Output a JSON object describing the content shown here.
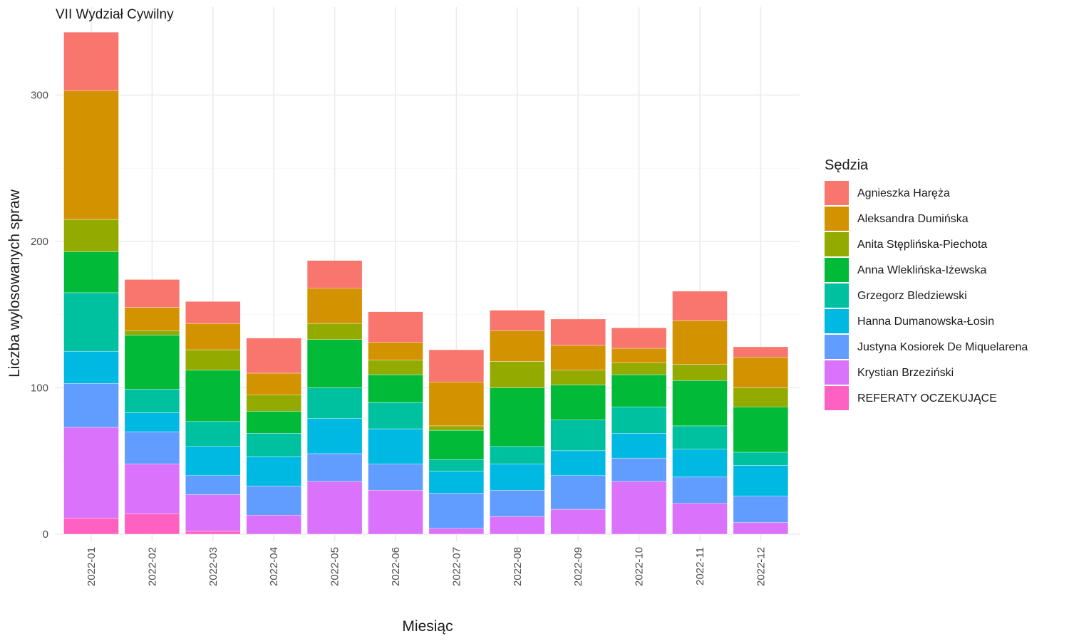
{
  "chart_data": {
    "type": "bar",
    "stacked": true,
    "title": "VII Wydział Cywilny",
    "xlabel": "Miesiąc",
    "ylabel": "Liczba wylosowanych spraw",
    "ylim": [
      -12,
      348
    ],
    "yticks": [
      0,
      100,
      200,
      300
    ],
    "grid": true,
    "legend_title": "Sędzia",
    "legend_position": "right",
    "categories": [
      "2022-01",
      "2022-02",
      "2022-03",
      "2022-04",
      "2022-05",
      "2022-06",
      "2022-07",
      "2022-08",
      "2022-09",
      "2022-10",
      "2022-11",
      "2022-12"
    ],
    "series": [
      {
        "name": "Agnieszka Haręża",
        "color": "#F8766D",
        "values": [
          40,
          19,
          15,
          24,
          19,
          21,
          22,
          14,
          18,
          14,
          20,
          7
        ]
      },
      {
        "name": "Aleksandra Dumińska",
        "color": "#D39200",
        "values": [
          88,
          16,
          18,
          15,
          24,
          12,
          30,
          21,
          17,
          10,
          30,
          21
        ]
      },
      {
        "name": "Anita Stęplińska-Piechota",
        "color": "#93AA00",
        "values": [
          22,
          3,
          14,
          11,
          11,
          10,
          3,
          18,
          10,
          8,
          11,
          13
        ]
      },
      {
        "name": "Anna Wleklińska-Iżewska",
        "color": "#00BA38",
        "values": [
          28,
          37,
          35,
          15,
          33,
          19,
          20,
          40,
          24,
          22,
          31,
          31
        ]
      },
      {
        "name": "Grzegorz Bledziewski",
        "color": "#00C19F",
        "values": [
          40,
          16,
          17,
          16,
          21,
          18,
          8,
          12,
          21,
          18,
          16,
          9
        ]
      },
      {
        "name": "Hanna Dumanowska-Łosin",
        "color": "#00B9E3",
        "values": [
          22,
          13,
          20,
          20,
          24,
          24,
          15,
          18,
          17,
          17,
          19,
          21
        ]
      },
      {
        "name": "Justyna Kosiorek De Miquelarena",
        "color": "#619CFF",
        "values": [
          30,
          22,
          13,
          20,
          19,
          18,
          24,
          18,
          23,
          16,
          18,
          18
        ]
      },
      {
        "name": "Krystian Brzeziński",
        "color": "#DB72FB",
        "values": [
          62,
          34,
          25,
          13,
          36,
          30,
          4,
          12,
          17,
          36,
          21,
          8
        ]
      },
      {
        "name": "REFERATY OCZEKUJĄCE",
        "color": "#FF61C3",
        "values": [
          11,
          14,
          2,
          0,
          0,
          0,
          0,
          0,
          0,
          0,
          0,
          0
        ]
      }
    ]
  }
}
